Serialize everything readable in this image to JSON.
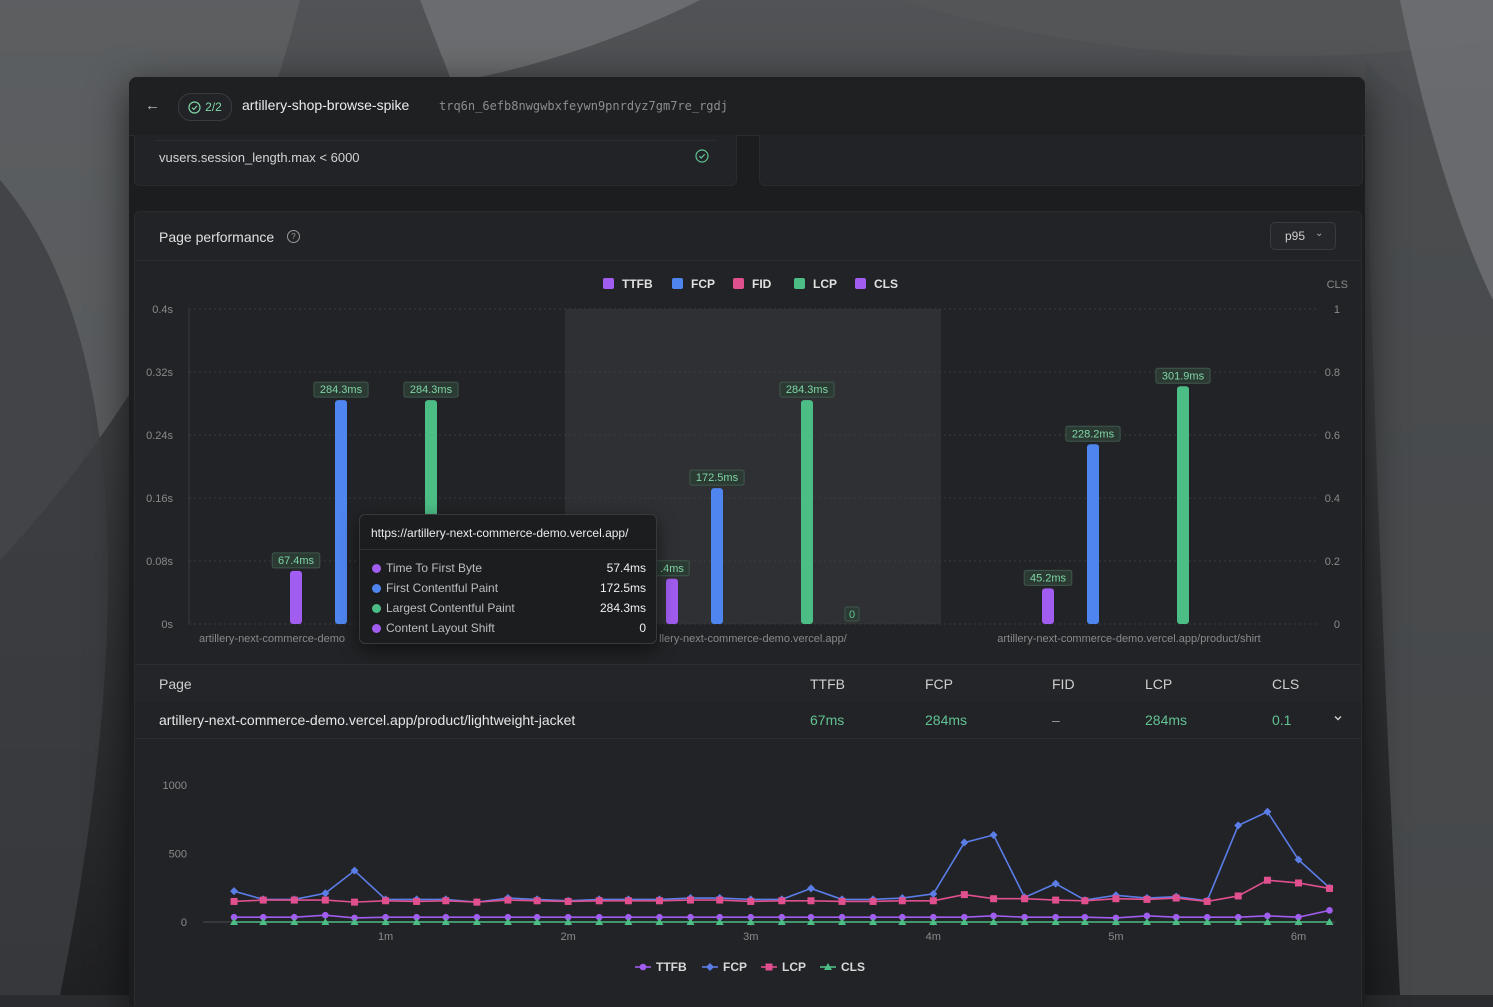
{
  "header": {
    "back_icon": "←",
    "status_count": "2/2",
    "test_name": "artillery-shop-browse-spike",
    "run_id": "trq6n_6efb8nwgwbxfeywn9pnrdyz7gm7re_rgdj"
  },
  "threshold": {
    "text": "vusers.session_length.max < 6000",
    "status": "pass"
  },
  "panel": {
    "title": "Page performance",
    "help_icon": "?",
    "percentile": "p95"
  },
  "colors": {
    "TTFB": "#a15cf0",
    "FCP": "#4f85ef",
    "FID": "#e04f8e",
    "LCP": "#4dbd86",
    "CLS": "#a15cf0",
    "FCP_line": "#5b7de8",
    "LCP_line": "#e04f8e",
    "CLS_line": "#4dbd86"
  },
  "chart_data": [
    {
      "type": "bar",
      "legend": [
        "TTFB",
        "FCP",
        "FID",
        "LCP",
        "CLS"
      ],
      "categories": [
        "artillery-next-commerce-demo.vercel.app/product/lightweight-jacket",
        "artillery-next-commerce-demo.vercel.app/",
        "artillery-next-commerce-demo.vercel.app/product/shirt"
      ],
      "category_labels": [
        "artillery-next-commerce-demo",
        "llery-next-commerce-demo.vercel.app/",
        "artillery-next-commerce-demo.vercel.app/product/shirt"
      ],
      "series": [
        {
          "name": "TTFB",
          "values": [
            67.4,
            57.4,
            45.2
          ],
          "labels": [
            "67.4ms",
            ".4ms",
            "45.2ms"
          ]
        },
        {
          "name": "FCP",
          "values": [
            284.3,
            172.5,
            228.2
          ],
          "labels": [
            "284.3ms",
            "172.5ms",
            "228.2ms"
          ]
        },
        {
          "name": "LCP",
          "values": [
            284.3,
            284.3,
            301.9
          ],
          "labels": [
            "284.3ms",
            "284.3ms",
            "301.9ms"
          ]
        },
        {
          "name": "CLS",
          "values": [
            null,
            0,
            null
          ],
          "labels": [
            null,
            "0",
            null
          ]
        }
      ],
      "y_left_ticks": [
        "0s",
        "0.08s",
        "0.16s",
        "0.24s",
        "0.32s",
        "0.4s"
      ],
      "y_right_label": "CLS",
      "y_right_ticks": [
        "0",
        "0.2",
        "0.4",
        "0.6",
        "0.8",
        "1"
      ],
      "ylim": [
        0,
        400
      ],
      "y2lim": [
        0,
        1
      ],
      "highlighted_category": 1,
      "tooltip": {
        "url": "https://artillery-next-commerce-demo.vercel.app/",
        "rows": [
          {
            "label": "Time To First Byte",
            "value": "57.4ms",
            "metric": "TTFB"
          },
          {
            "label": "First Contentful Paint",
            "value": "172.5ms",
            "metric": "FCP"
          },
          {
            "label": "Largest Contentful Paint",
            "value": "284.3ms",
            "metric": "LCP"
          },
          {
            "label": "Content Layout Shift",
            "value": "0",
            "metric": "CLS"
          }
        ]
      }
    },
    {
      "type": "line",
      "x": [
        0.17,
        0.33,
        0.5,
        0.67,
        0.83,
        1.0,
        1.17,
        1.33,
        1.5,
        1.67,
        1.83,
        2.0,
        2.17,
        2.33,
        2.5,
        2.67,
        2.83,
        3.0,
        3.17,
        3.33,
        3.5,
        3.67,
        3.83,
        4.0,
        4.17,
        4.33,
        4.5,
        4.67,
        4.83,
        5.0,
        5.17,
        5.33,
        5.5,
        5.67,
        5.83,
        6.0,
        6.17
      ],
      "x_ticks": [
        "1m",
        "2m",
        "3m",
        "4m",
        "5m",
        "6m"
      ],
      "y_ticks": [
        "0",
        "500",
        "1000"
      ],
      "ylim": [
        0,
        1000
      ],
      "legend": [
        "TTFB",
        "FCP",
        "LCP",
        "CLS"
      ],
      "series": [
        {
          "name": "TTFB",
          "values": [
            35,
            35,
            35,
            50,
            30,
            35,
            35,
            35,
            35,
            35,
            35,
            35,
            35,
            35,
            35,
            35,
            35,
            35,
            35,
            35,
            35,
            35,
            35,
            35,
            35,
            45,
            35,
            35,
            35,
            30,
            45,
            35,
            35,
            35,
            45,
            35,
            85
          ]
        },
        {
          "name": "FCP",
          "values": [
            225,
            165,
            165,
            210,
            375,
            165,
            165,
            165,
            145,
            175,
            165,
            155,
            165,
            165,
            165,
            175,
            175,
            165,
            165,
            245,
            165,
            165,
            175,
            205,
            580,
            635,
            180,
            280,
            160,
            195,
            175,
            185,
            155,
            705,
            805,
            455,
            250
          ]
        },
        {
          "name": "LCP",
          "values": [
            150,
            160,
            160,
            160,
            145,
            155,
            150,
            155,
            145,
            160,
            155,
            150,
            155,
            155,
            155,
            160,
            160,
            150,
            155,
            155,
            150,
            150,
            155,
            155,
            200,
            170,
            170,
            160,
            155,
            170,
            165,
            175,
            150,
            190,
            305,
            285,
            245
          ]
        },
        {
          "name": "CLS",
          "values": [
            0,
            0,
            0,
            0,
            0,
            0,
            0,
            0,
            0,
            0,
            0,
            0,
            0,
            0,
            0,
            0,
            0,
            0,
            0,
            0,
            0,
            0,
            0,
            0,
            0,
            0,
            0,
            0,
            0,
            0,
            0,
            0,
            0,
            0,
            0,
            0,
            0
          ]
        }
      ]
    }
  ],
  "table": {
    "headers": {
      "page": "Page",
      "ttfb": "TTFB",
      "fcp": "FCP",
      "fid": "FID",
      "lcp": "LCP",
      "cls": "CLS"
    },
    "row": {
      "page": "artillery-next-commerce-demo.vercel.app/product/lightweight-jacket",
      "ttfb": "67ms",
      "fcp": "284ms",
      "fid": "–",
      "lcp": "284ms",
      "cls": "0.1"
    },
    "expand_icon": "chevron-down-icon"
  }
}
